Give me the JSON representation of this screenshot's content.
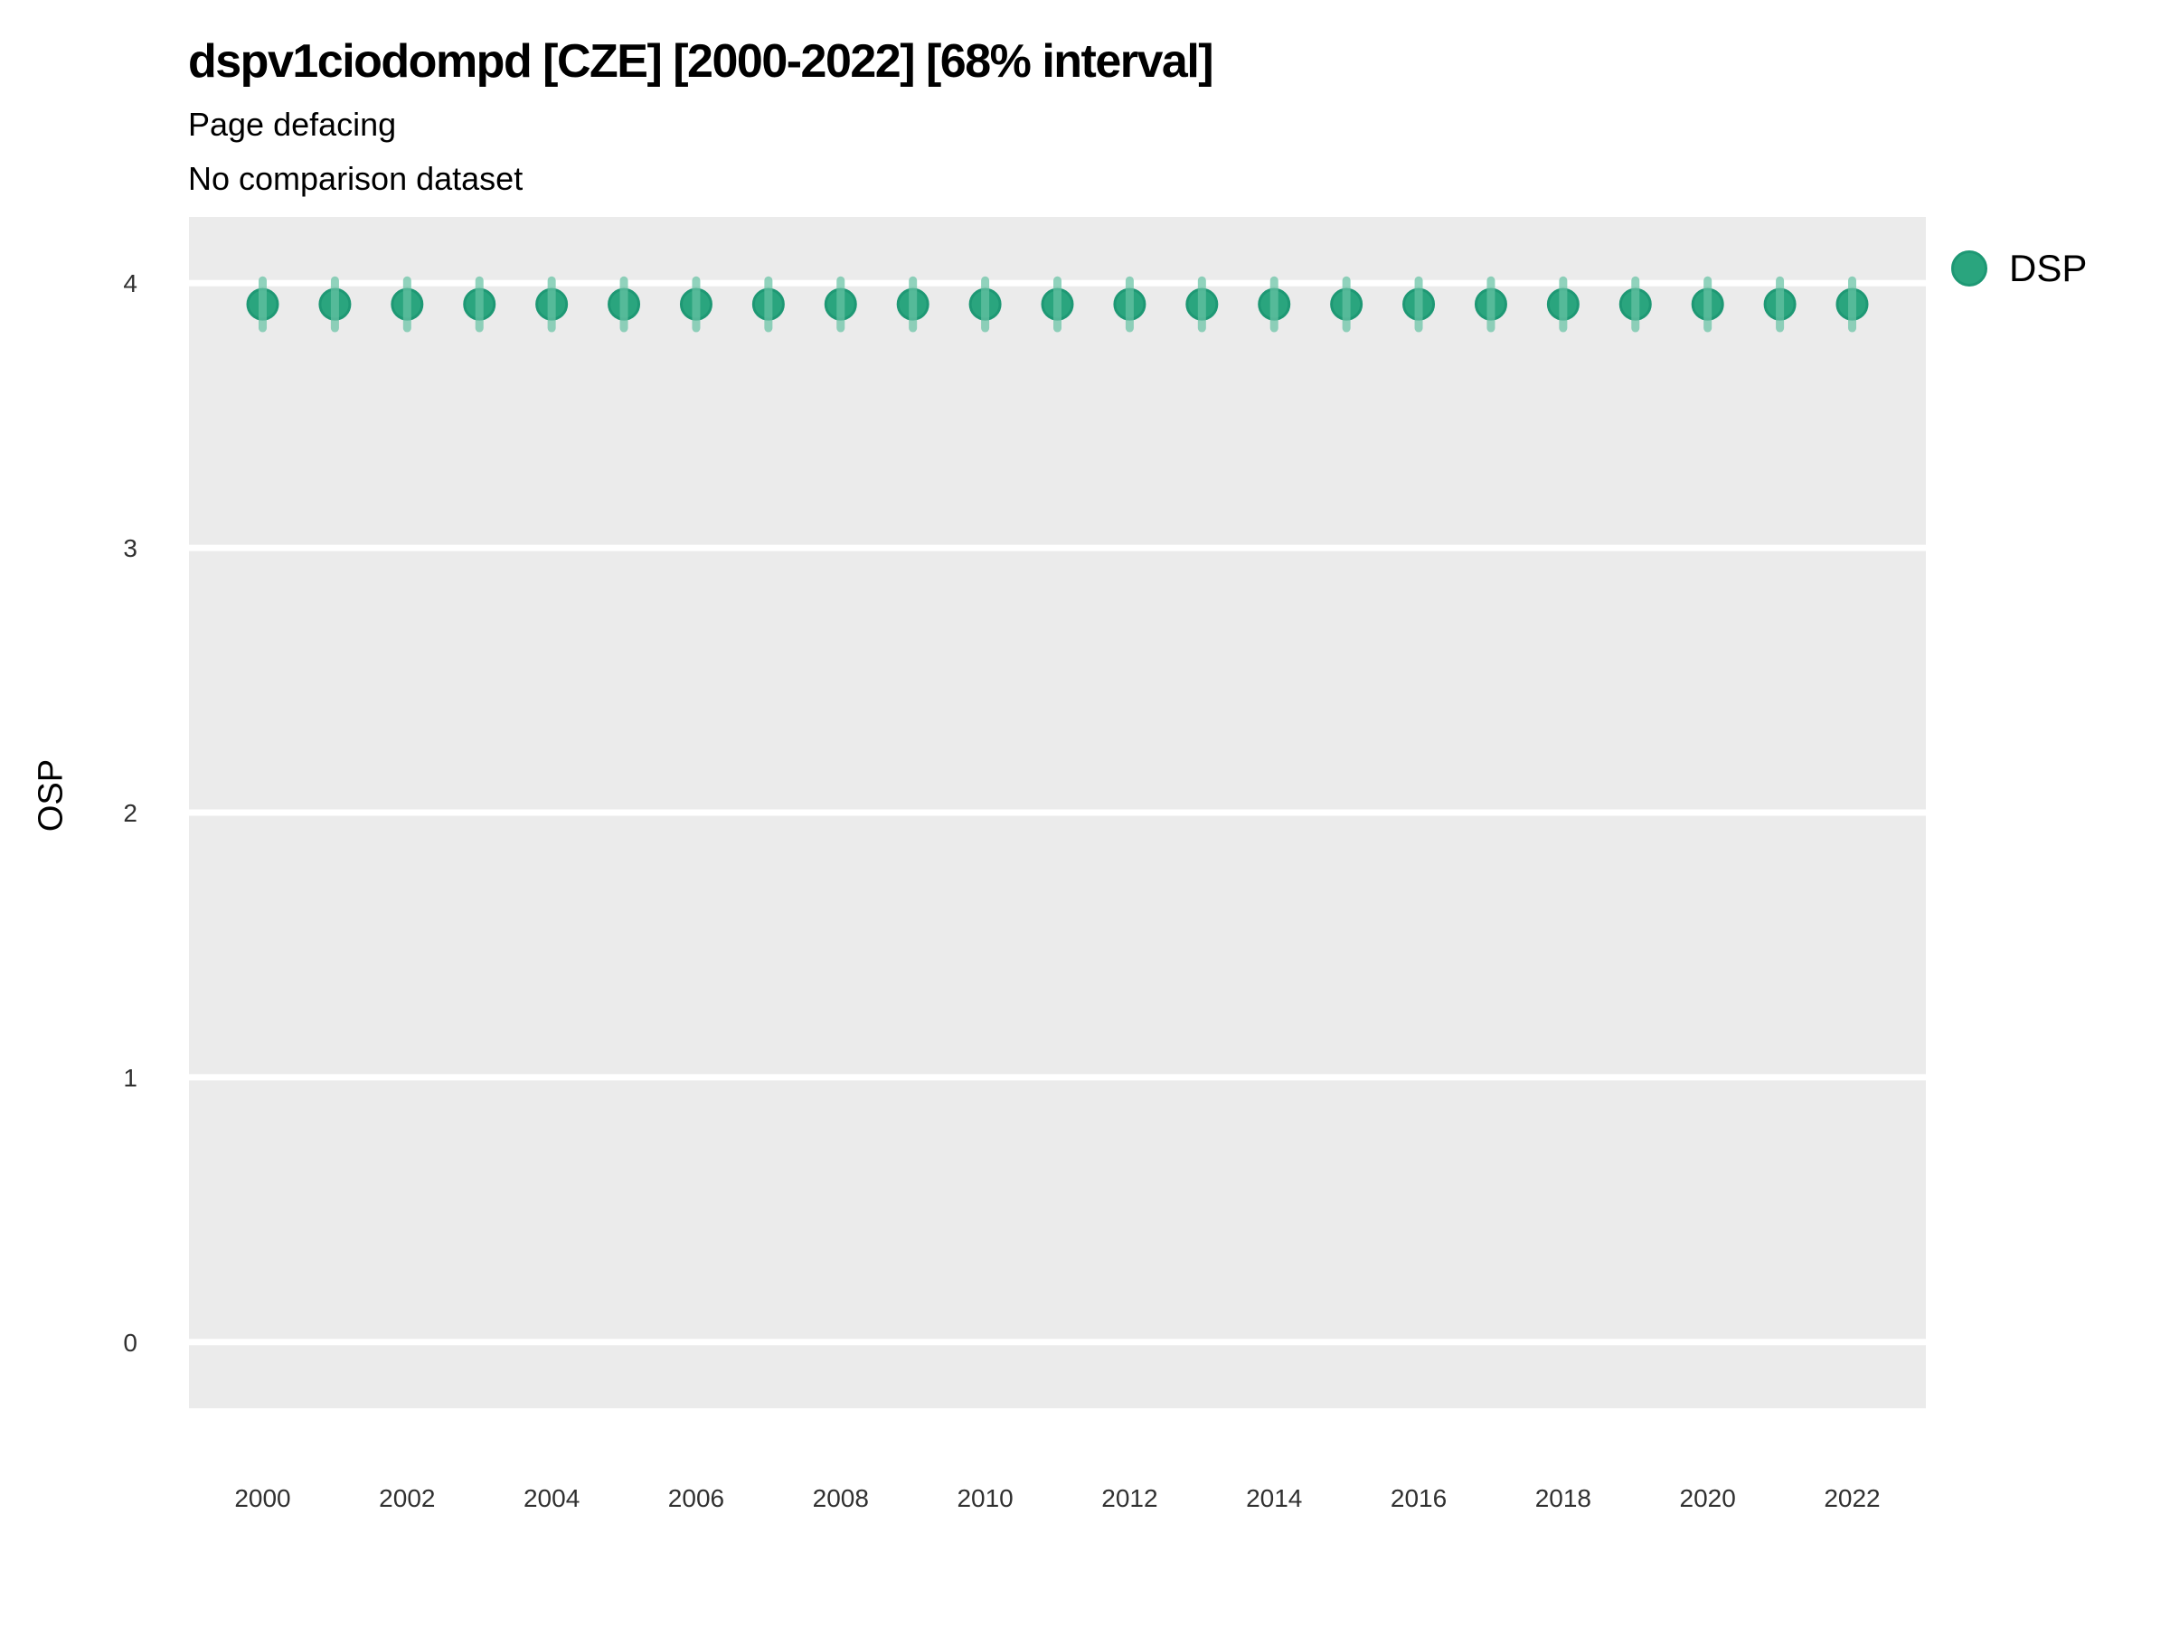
{
  "header": {
    "title": "dspv1ciodompd [CZE] [2000-2022] [68% interval]",
    "subtitle": "Page defacing",
    "comparison_note": "No comparison dataset"
  },
  "y_axis": {
    "title": "OSP",
    "ticks": [
      "4",
      "3",
      "2",
      "1",
      "0"
    ]
  },
  "x_axis": {
    "tick_labels": [
      "2000",
      "2002",
      "2004",
      "2006",
      "2008",
      "2010",
      "2012",
      "2014",
      "2016",
      "2018",
      "2020",
      "2022"
    ]
  },
  "legend": {
    "items": [
      {
        "label": "DSP",
        "color": "#2aa57e"
      }
    ]
  },
  "colors": {
    "panel_bg": "#ebebeb",
    "gridline": "#ffffff",
    "point_fill": "#2aa57e",
    "point_stroke": "#1e9874",
    "interval_bar": "#66c2a4",
    "tick_text": "#303030"
  },
  "chart_data": {
    "type": "scatter",
    "title": "dspv1ciodompd [CZE] [2000-2022] [68% interval]",
    "subtitle": "Page defacing",
    "note": "No comparison dataset",
    "xlabel": "",
    "ylabel": "OSP",
    "interval_level": "68%",
    "legend_position": "right-top",
    "grid": "horizontal-major-only",
    "xlim": [
      1998.98,
      2023.02
    ],
    "ylim": [
      -0.25,
      4.25
    ],
    "x_tick_values": [
      2000,
      2002,
      2004,
      2006,
      2008,
      2010,
      2012,
      2014,
      2016,
      2018,
      2020,
      2022
    ],
    "y_tick_values": [
      0,
      1,
      2,
      3,
      4
    ],
    "series": [
      {
        "name": "DSP",
        "x": [
          2000,
          2001,
          2002,
          2003,
          2004,
          2005,
          2006,
          2007,
          2008,
          2009,
          2010,
          2011,
          2012,
          2013,
          2014,
          2015,
          2016,
          2017,
          2018,
          2019,
          2020,
          2021,
          2022
        ],
        "y": [
          3.92,
          3.92,
          3.92,
          3.92,
          3.92,
          3.92,
          3.92,
          3.92,
          3.92,
          3.92,
          3.92,
          3.92,
          3.92,
          3.92,
          3.92,
          3.92,
          3.92,
          3.92,
          3.92,
          3.92,
          3.92,
          3.92,
          3.92
        ],
        "interval_low": [
          3.83,
          3.83,
          3.83,
          3.83,
          3.83,
          3.83,
          3.83,
          3.83,
          3.83,
          3.83,
          3.83,
          3.83,
          3.83,
          3.83,
          3.83,
          3.83,
          3.83,
          3.83,
          3.83,
          3.83,
          3.83,
          3.83,
          3.83
        ],
        "interval_high": [
          4.01,
          4.01,
          4.01,
          4.01,
          4.01,
          4.01,
          4.01,
          4.01,
          4.01,
          4.01,
          4.01,
          4.01,
          4.01,
          4.01,
          4.01,
          4.01,
          4.01,
          4.01,
          4.01,
          4.01,
          4.01,
          4.01,
          4.01
        ]
      }
    ]
  }
}
